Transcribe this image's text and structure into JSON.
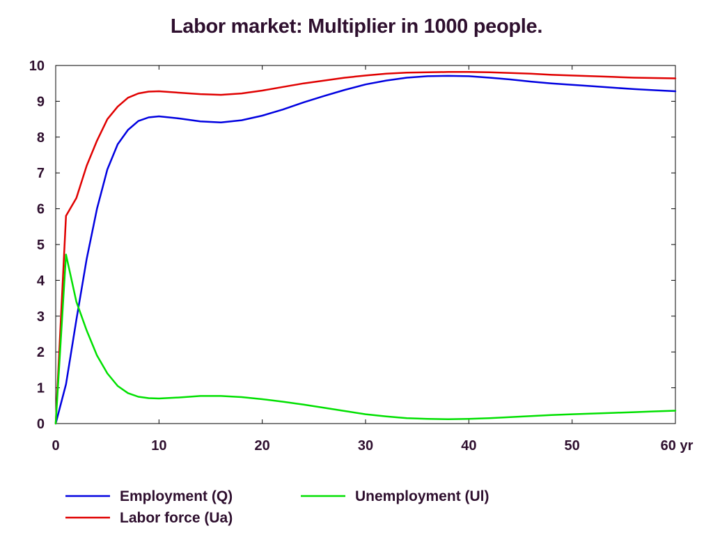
{
  "chart_data": {
    "type": "line",
    "title": "Labor market: Multiplier in 1000 people.",
    "xlabel": "",
    "ylabel": "",
    "x_unit_label": "yr",
    "xlim": [
      0,
      60
    ],
    "ylim": [
      0,
      10
    ],
    "x_ticks": [
      0,
      10,
      20,
      30,
      40,
      50,
      60
    ],
    "y_ticks": [
      0,
      1,
      2,
      3,
      4,
      5,
      6,
      7,
      8,
      9,
      10
    ],
    "grid": false,
    "legend_position": "bottom",
    "series": [
      {
        "name": "Employment (Q)",
        "color": "#0000e0",
        "x": [
          0,
          1,
          2,
          3,
          4,
          5,
          6,
          7,
          8,
          9,
          10,
          12,
          14,
          16,
          18,
          20,
          22,
          24,
          26,
          28,
          30,
          32,
          34,
          36,
          38,
          40,
          42,
          44,
          46,
          48,
          50,
          52,
          54,
          56,
          58,
          60
        ],
        "y": [
          0,
          1.1,
          2.9,
          4.6,
          6.0,
          7.1,
          7.8,
          8.2,
          8.45,
          8.55,
          8.58,
          8.52,
          8.44,
          8.41,
          8.47,
          8.6,
          8.77,
          8.97,
          9.15,
          9.32,
          9.47,
          9.58,
          9.66,
          9.7,
          9.71,
          9.7,
          9.66,
          9.61,
          9.55,
          9.5,
          9.46,
          9.42,
          9.38,
          9.34,
          9.31,
          9.28
        ]
      },
      {
        "name": "Labor force (Ua)",
        "color": "#e00000",
        "x": [
          0,
          1,
          2,
          3,
          4,
          5,
          6,
          7,
          8,
          9,
          10,
          12,
          14,
          16,
          18,
          20,
          22,
          24,
          26,
          28,
          30,
          32,
          34,
          36,
          38,
          40,
          42,
          44,
          46,
          48,
          50,
          52,
          54,
          56,
          58,
          60
        ],
        "y": [
          0,
          5.8,
          6.3,
          7.2,
          7.9,
          8.5,
          8.85,
          9.1,
          9.22,
          9.27,
          9.28,
          9.24,
          9.2,
          9.18,
          9.22,
          9.3,
          9.4,
          9.5,
          9.58,
          9.66,
          9.72,
          9.77,
          9.8,
          9.81,
          9.82,
          9.82,
          9.81,
          9.79,
          9.77,
          9.74,
          9.72,
          9.7,
          9.68,
          9.66,
          9.65,
          9.64
        ]
      },
      {
        "name": "Unemployment (Ul)",
        "color": "#00e000",
        "x": [
          0,
          1,
          2,
          3,
          4,
          5,
          6,
          7,
          8,
          9,
          10,
          12,
          14,
          16,
          18,
          20,
          22,
          24,
          26,
          28,
          30,
          32,
          34,
          36,
          38,
          40,
          42,
          44,
          46,
          48,
          50,
          52,
          54,
          56,
          58,
          60
        ],
        "y": [
          0,
          4.72,
          3.4,
          2.6,
          1.9,
          1.4,
          1.05,
          0.85,
          0.75,
          0.71,
          0.7,
          0.73,
          0.77,
          0.77,
          0.74,
          0.68,
          0.61,
          0.53,
          0.44,
          0.35,
          0.26,
          0.2,
          0.15,
          0.13,
          0.12,
          0.13,
          0.15,
          0.18,
          0.21,
          0.24,
          0.26,
          0.28,
          0.3,
          0.32,
          0.34,
          0.36
        ]
      }
    ]
  }
}
